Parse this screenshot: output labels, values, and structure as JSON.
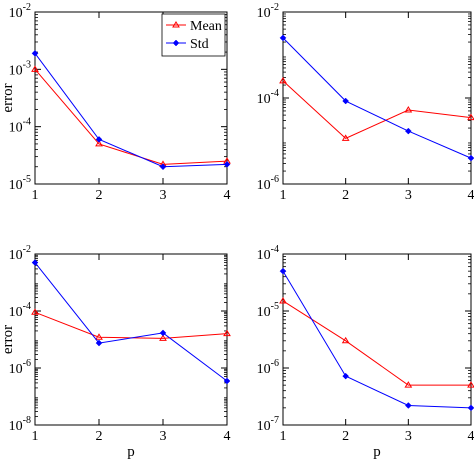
{
  "colors": {
    "mean": "#ff0000",
    "std": "#0000ff",
    "axis": "#000000"
  },
  "legend": {
    "placement": "top-right of first panel",
    "entries": [
      "Mean",
      "Std"
    ]
  },
  "chart_data": [
    {
      "type": "line",
      "panel": "top-left",
      "xlabel": "",
      "ylabel": "error",
      "yscale": "log",
      "xlim": [
        1,
        4
      ],
      "ylim_exp": [
        -5,
        -2
      ],
      "xticks": [
        "1",
        "2",
        "3",
        "4"
      ],
      "yticks": [
        {
          "base": "10",
          "exp": "-5",
          "e": -5
        },
        {
          "base": "10",
          "exp": "-4",
          "e": -4
        },
        {
          "base": "10",
          "exp": "-3",
          "e": -3
        },
        {
          "base": "10",
          "exp": "-2",
          "e": -2
        }
      ],
      "series": [
        {
          "name": "Mean",
          "x": [
            1,
            2,
            3,
            4
          ],
          "y": [
            0.001,
            5e-05,
            2.2e-05,
            2.5e-05
          ]
        },
        {
          "name": "Std",
          "x": [
            1,
            2,
            3,
            4
          ],
          "y": [
            0.0019,
            6e-05,
            2e-05,
            2.2e-05
          ]
        }
      ]
    },
    {
      "type": "line",
      "panel": "top-right",
      "xlabel": "",
      "ylabel": "",
      "yscale": "log",
      "xlim": [
        1,
        4
      ],
      "ylim_exp": [
        -6,
        -2
      ],
      "xticks": [
        "1",
        "2",
        "3",
        "4"
      ],
      "yticks": [
        {
          "base": "10",
          "exp": "-6",
          "e": -6
        },
        {
          "base": "10",
          "exp": "-4",
          "e": -4
        },
        {
          "base": "10",
          "exp": "-2",
          "e": -2
        }
      ],
      "series": [
        {
          "name": "Mean",
          "x": [
            1,
            2,
            3,
            4
          ],
          "y": [
            0.00025,
            1.15e-05,
            5.25e-05,
            3.5e-05
          ]
        },
        {
          "name": "Std",
          "x": [
            1,
            2,
            3,
            4
          ],
          "y": [
            0.0025,
            8.5e-05,
            1.7e-05,
            4e-06
          ]
        }
      ]
    },
    {
      "type": "line",
      "panel": "bottom-left",
      "xlabel": "p",
      "ylabel": "error",
      "yscale": "log",
      "xlim": [
        1,
        4
      ],
      "ylim_exp": [
        -8,
        -2
      ],
      "xticks": [
        "1",
        "2",
        "3",
        "4"
      ],
      "yticks": [
        {
          "base": "10",
          "exp": "-8",
          "e": -8
        },
        {
          "base": "10",
          "exp": "-6",
          "e": -6
        },
        {
          "base": "10",
          "exp": "-4",
          "e": -4
        },
        {
          "base": "10",
          "exp": "-2",
          "e": -2
        }
      ],
      "series": [
        {
          "name": "Mean",
          "x": [
            1,
            2,
            3,
            4
          ],
          "y": [
            9e-05,
            1.2e-05,
            1.1e-05,
            1.6e-05
          ]
        },
        {
          "name": "Std",
          "x": [
            1,
            2,
            3,
            4
          ],
          "y": [
            0.005,
            7.5e-06,
            1.7e-05,
            3.5e-07
          ]
        }
      ]
    },
    {
      "type": "line",
      "panel": "bottom-right",
      "xlabel": "p",
      "ylabel": "",
      "yscale": "log",
      "xlim": [
        1,
        4
      ],
      "ylim_exp": [
        -7,
        -4
      ],
      "xticks": [
        "1",
        "2",
        "3",
        "4"
      ],
      "yticks": [
        {
          "base": "10",
          "exp": "-7",
          "e": -7
        },
        {
          "base": "10",
          "exp": "-6",
          "e": -6
        },
        {
          "base": "10",
          "exp": "-5",
          "e": -5
        },
        {
          "base": "10",
          "exp": "-4",
          "e": -4
        }
      ],
      "series": [
        {
          "name": "Mean",
          "x": [
            1,
            2,
            3,
            4
          ],
          "y": [
            1.5e-05,
            3e-06,
            5e-07,
            5e-07
          ]
        },
        {
          "name": "Std",
          "x": [
            1,
            2,
            3,
            4
          ],
          "y": [
            5e-05,
            7.2e-07,
            2.2e-07,
            2e-07
          ]
        }
      ]
    }
  ]
}
